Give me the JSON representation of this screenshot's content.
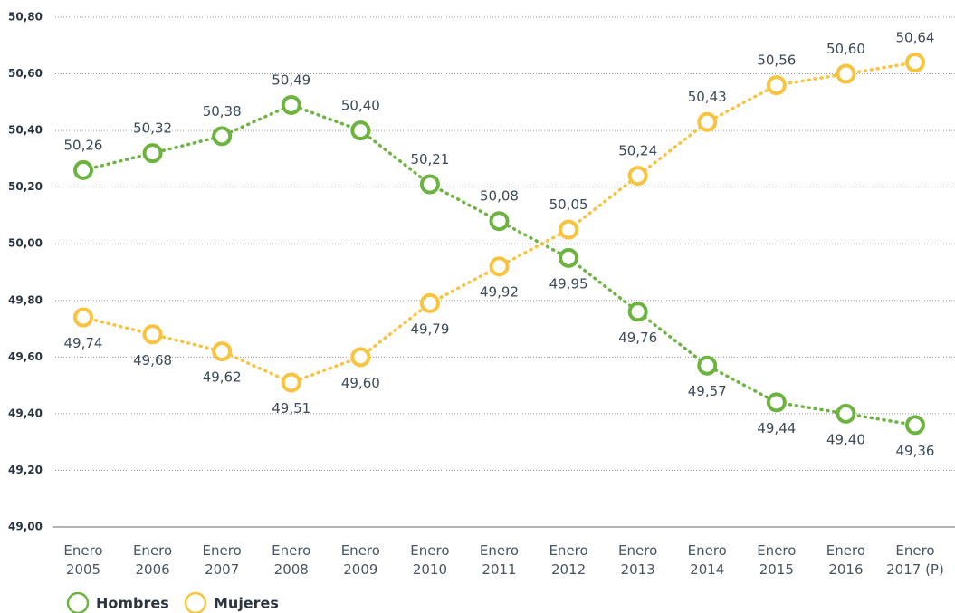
{
  "chart_data": {
    "type": "line",
    "categories": [
      "Enero 2005",
      "Enero 2006",
      "Enero 2007",
      "Enero 2008",
      "Enero 2009",
      "Enero 2010",
      "Enero 2011",
      "Enero 2012",
      "Enero 2013",
      "Enero 2014",
      "Enero 2015",
      "Enero 2016",
      "Enero 2017 (P)"
    ],
    "series": [
      {
        "name": "Hombres",
        "color": "#6db33f",
        "values": [
          50.26,
          50.32,
          50.38,
          50.49,
          50.4,
          50.21,
          50.08,
          49.95,
          49.76,
          49.57,
          49.44,
          49.4,
          49.36
        ],
        "value_labels": [
          "50,26",
          "50,32",
          "50,38",
          "50,49",
          "50,40",
          "50,21",
          "50,08",
          "49,95",
          "49,76",
          "49,57",
          "49,44",
          "49,40",
          "49,36"
        ]
      },
      {
        "name": "Mujeres",
        "color": "#f8c33f",
        "values": [
          49.74,
          49.68,
          49.62,
          49.51,
          49.6,
          49.79,
          49.92,
          50.05,
          50.24,
          50.43,
          50.56,
          50.6,
          50.64
        ],
        "value_labels": [
          "49,74",
          "49,68",
          "49,62",
          "49,51",
          "49,60",
          "49,79",
          "49,92",
          "50,05",
          "50,24",
          "50,43",
          "50,56",
          "50,60",
          "50,64"
        ]
      }
    ],
    "ylim": [
      49.0,
      50.8
    ],
    "yticks": [
      {
        "value": 49.0,
        "label": "49,00"
      },
      {
        "value": 49.2,
        "label": "49,20"
      },
      {
        "value": 49.4,
        "label": "49,40"
      },
      {
        "value": 49.6,
        "label": "49,60"
      },
      {
        "value": 49.8,
        "label": "49,80"
      },
      {
        "value": 50.0,
        "label": "50,00"
      },
      {
        "value": 50.2,
        "label": "50,20"
      },
      {
        "value": 50.4,
        "label": "50,40"
      },
      {
        "value": 50.6,
        "label": "50,60"
      },
      {
        "value": 50.8,
        "label": "50,80"
      }
    ],
    "grid": true,
    "legend": "bottom-left"
  }
}
